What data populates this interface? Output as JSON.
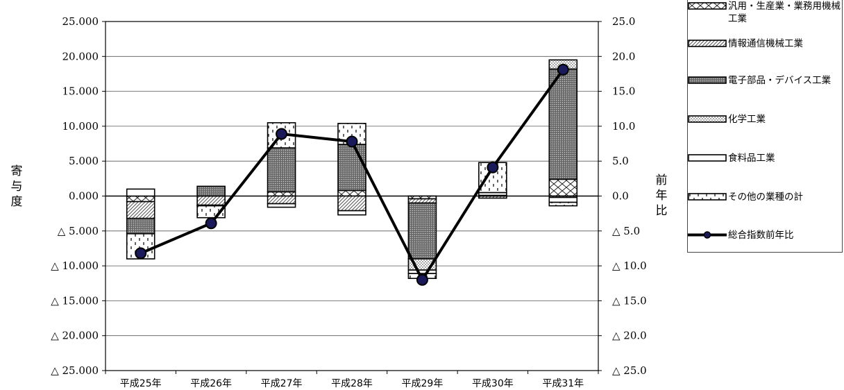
{
  "chart_data": {
    "type": "bar",
    "stacked": true,
    "categories": [
      "平成25年",
      "平成26年",
      "平成27年",
      "平成28年",
      "平成29年",
      "平成30年",
      "平成31年"
    ],
    "left_axis": {
      "title": "寄与度",
      "ylim": [
        -25,
        25
      ],
      "ticks": [
        25,
        20,
        15,
        10,
        5,
        0,
        -5,
        -10,
        -15,
        -20,
        -25
      ],
      "tick_labels": [
        "25.000",
        "20.000",
        "15.000",
        "10.000",
        "5.000",
        "0.000",
        "△ 5.000",
        "△ 10.000",
        "△ 15.000",
        "△ 20.000",
        "△ 25.000"
      ]
    },
    "right_axis": {
      "title": "前年比",
      "ylim": [
        -25,
        25
      ],
      "ticks": [
        25,
        20,
        15,
        10,
        5,
        0,
        -5,
        -10,
        -15,
        -20,
        -25
      ],
      "tick_labels": [
        "25.0",
        "20.0",
        "15.0",
        "10.0",
        "5.0",
        "0.0",
        "△ 5.0",
        "△ 10.0",
        "△ 15.0",
        "△ 20.0",
        "△ 25.0"
      ]
    },
    "series": [
      {
        "name": "汎用・生産業・業務用機械工業",
        "pattern": "crosshatch",
        "values": [
          -0.8,
          0.0,
          0.6,
          0.8,
          -0.4,
          0.0,
          2.4
        ]
      },
      {
        "name": "情報通信機械工業",
        "pattern": "diagonal",
        "values": [
          -2.4,
          -1.3,
          -1.1,
          -2.1,
          -0.6,
          -0.3,
          -0.2
        ]
      },
      {
        "name": "電子部品・デバイス工業",
        "pattern": "dark",
        "values": [
          -2.2,
          1.4,
          6.3,
          6.6,
          -8.0,
          0.1,
          15.8
        ]
      },
      {
        "name": "化学工業",
        "pattern": "dots",
        "values": [
          0.0,
          0.0,
          0.0,
          0.0,
          -1.6,
          0.0,
          1.3
        ]
      },
      {
        "name": "食料品工業",
        "pattern": "white",
        "values": [
          1.0,
          -0.1,
          -0.5,
          -0.6,
          -0.5,
          0.4,
          -0.7
        ]
      },
      {
        "name": "その他の業種の計",
        "pattern": "dashes",
        "values": [
          -3.6,
          -1.7,
          3.6,
          3.0,
          -0.7,
          4.3,
          -0.5
        ]
      }
    ],
    "line": {
      "name": "総合指数前年比",
      "values": [
        -8.2,
        -3.9,
        8.9,
        7.8,
        -12.0,
        4.1,
        18.1
      ]
    },
    "legend_position": "top-right",
    "grid": true
  },
  "legend_items": [
    {
      "label": "汎用・生産業・業務用機械工業",
      "pattern": "crosshatch"
    },
    {
      "label": "情報通信機械工業",
      "pattern": "diagonal"
    },
    {
      "label": "電子部品・デバイス工業",
      "pattern": "dark"
    },
    {
      "label": "化学工業",
      "pattern": "dots"
    },
    {
      "label": "食料品工業",
      "pattern": "white"
    },
    {
      "label": "その他の業種の計",
      "pattern": "dashes"
    },
    {
      "label": "総合指数前年比",
      "pattern": "line"
    }
  ]
}
